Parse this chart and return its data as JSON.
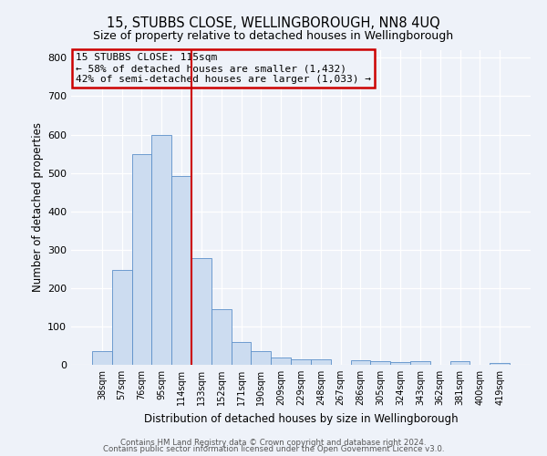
{
  "title": "15, STUBBS CLOSE, WELLINGBOROUGH, NN8 4UQ",
  "subtitle": "Size of property relative to detached houses in Wellingborough",
  "xlabel": "Distribution of detached houses by size in Wellingborough",
  "ylabel": "Number of detached properties",
  "categories": [
    "38sqm",
    "57sqm",
    "76sqm",
    "95sqm",
    "114sqm",
    "133sqm",
    "152sqm",
    "171sqm",
    "190sqm",
    "209sqm",
    "229sqm",
    "248sqm",
    "267sqm",
    "286sqm",
    "305sqm",
    "324sqm",
    "343sqm",
    "362sqm",
    "381sqm",
    "400sqm",
    "419sqm"
  ],
  "values": [
    35,
    248,
    548,
    600,
    493,
    278,
    145,
    60,
    35,
    20,
    15,
    15,
    0,
    12,
    10,
    8,
    10,
    0,
    10,
    0,
    5
  ],
  "bar_color": "#ccdcf0",
  "bar_edge_color": "#5b8fc9",
  "vline_color": "#cc0000",
  "annotation_title": "15 STUBBS CLOSE: 115sqm",
  "annotation_line1": "← 58% of detached houses are smaller (1,432)",
  "annotation_line2": "42% of semi-detached houses are larger (1,033) →",
  "annotation_box_edgecolor": "#cc0000",
  "footer1": "Contains HM Land Registry data © Crown copyright and database right 2024.",
  "footer2": "Contains public sector information licensed under the Open Government Licence v3.0.",
  "background_color": "#eef2f9",
  "grid_color": "#ffffff",
  "ylim": [
    0,
    820
  ],
  "yticks": [
    0,
    100,
    200,
    300,
    400,
    500,
    600,
    700,
    800
  ]
}
